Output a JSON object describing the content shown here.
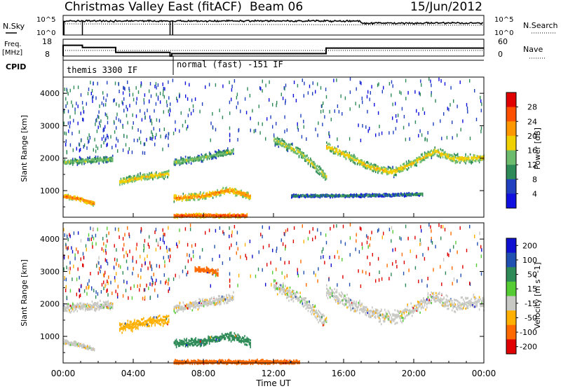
{
  "header": {
    "station": "Christmas Valley East (fitACF)",
    "beam": "Beam 06",
    "date": "15/Jun/2012"
  },
  "top_panels": {
    "nsky_label": "N.Sky",
    "nsearch_label": "N.Search",
    "nsky_ticks": [
      "10^5",
      "10^0"
    ],
    "nsearch_ticks": [
      "10^5",
      "10^0"
    ],
    "freq_label": "Freq.",
    "freq_unit": "[MHz]",
    "freq_ticks": [
      "18",
      "8"
    ],
    "nave_label": "Nave",
    "nave_ticks": [
      "60",
      "0"
    ],
    "cpid_label": "CPID",
    "cpid_segments": [
      {
        "label": "themis 3300 IF",
        "start_h": 0,
        "end_h": 6.1
      },
      {
        "label": "normal (fast) -151 IF",
        "start_h": 6.1,
        "end_h": 24
      }
    ],
    "freq_series_mhz": [
      [
        0,
        8
      ],
      [
        0,
        15
      ],
      [
        1.1,
        15
      ],
      [
        1.1,
        13.6
      ],
      [
        3,
        13.6
      ],
      [
        3,
        10.4
      ],
      [
        6.1,
        10.4
      ],
      [
        6.1,
        8
      ],
      [
        6.2,
        8
      ],
      [
        6.2,
        9.6
      ],
      [
        15,
        9.6
      ],
      [
        15,
        13.2
      ],
      [
        24,
        13.2
      ]
    ]
  },
  "chart_data": [
    {
      "type": "heatmap",
      "title": "",
      "xlabel": "",
      "ylabel": "Slant Range [km]",
      "xlim_h": [
        0,
        24
      ],
      "ylim": [
        180,
        4500
      ],
      "y_ticks": [
        "1000",
        "2000",
        "3000",
        "4000"
      ],
      "colorbar_label": "Power [dB]",
      "colorbar_ticks": [
        "4",
        "8",
        "12",
        "16",
        "20",
        "24",
        "28"
      ],
      "colorbar_colors": [
        "#1010e0",
        "#2040c0",
        "#2e8b57",
        "#6dbb6d",
        "#f0d000",
        "#ff9800",
        "#ff5000",
        "#e00000"
      ],
      "bands": [
        {
          "t": [
            0,
            1.1,
            2.8
          ],
          "r": [
            1900,
            1950,
            2000
          ],
          "w": 140,
          "v": 16
        },
        {
          "t": [
            0,
            0.8,
            1.8
          ],
          "r": [
            860,
            790,
            620
          ],
          "w": 80,
          "v": 26
        },
        {
          "t": [
            3.2,
            4.5,
            6.0
          ],
          "r": [
            1300,
            1450,
            1550
          ],
          "w": 160,
          "v": 20
        },
        {
          "t": [
            6.3,
            8.0,
            9.5,
            10.7
          ],
          "r": [
            800,
            870,
            1050,
            850
          ],
          "w": 140,
          "v": 24
        },
        {
          "t": [
            6.3,
            8.0,
            9.7
          ],
          "r": [
            1900,
            2050,
            2250
          ],
          "w": 150,
          "v": 16
        },
        {
          "t": [
            6.3,
            10.5
          ],
          "r": [
            260,
            260
          ],
          "w": 80,
          "v": 28
        },
        {
          "t": [
            12.0,
            13.5,
            15.0
          ],
          "r": [
            2600,
            2200,
            1450
          ],
          "w": 200,
          "v": 18
        },
        {
          "t": [
            15.0,
            16.2,
            17.5,
            18.8,
            20.0,
            21.2,
            22.3,
            24.0
          ],
          "r": [
            2400,
            2100,
            1750,
            1600,
            1900,
            2250,
            2000,
            2050
          ],
          "w": 180,
          "v": 20
        },
        {
          "t": [
            13.0,
            17.0,
            20.5
          ],
          "r": [
            870,
            880,
            920
          ],
          "w": 60,
          "v": 12
        }
      ],
      "scatter_ranges": [
        {
          "t": [
            0,
            6.1
          ],
          "r": [
            2200,
            4400
          ]
        },
        {
          "t": [
            6.2,
            24
          ],
          "r": [
            2600,
            4500
          ]
        }
      ]
    },
    {
      "type": "heatmap",
      "title": "",
      "xlabel": "Time UT",
      "ylabel": "Slant Range [km]",
      "xlim_h": [
        0,
        24
      ],
      "ylim": [
        180,
        4500
      ],
      "x_ticks": [
        "00:00",
        "04:00",
        "08:00",
        "12:00",
        "16:00",
        "20:00",
        "00:00"
      ],
      "y_ticks": [
        "1000",
        "2000",
        "3000",
        "4000"
      ],
      "colorbar_label": "Velocity [m s^-1]",
      "colorbar_ticks": [
        "200",
        "100",
        "50",
        "15",
        "-15",
        "-50",
        "-100",
        "-200"
      ],
      "colorbar_colors": [
        "#1010d0",
        "#2050b0",
        "#2e8b57",
        "#55cc33",
        "#c8c8c4",
        "#ffb000",
        "#ff6a00",
        "#e00000"
      ],
      "bands": [
        {
          "t": [
            0,
            1.1,
            2.8
          ],
          "r": [
            1900,
            1950,
            2000
          ],
          "w": 200,
          "v": 0
        },
        {
          "t": [
            0,
            0.8,
            1.8
          ],
          "r": [
            860,
            790,
            620
          ],
          "w": 100,
          "v": 0
        },
        {
          "t": [
            3.2,
            4.5,
            6.0
          ],
          "r": [
            1300,
            1450,
            1550
          ],
          "w": 220,
          "v": -20
        },
        {
          "t": [
            6.3,
            8.0,
            9.5,
            10.7
          ],
          "r": [
            800,
            870,
            1050,
            850
          ],
          "w": 180,
          "v": 40
        },
        {
          "t": [
            6.3,
            8.0,
            9.7
          ],
          "r": [
            1900,
            2050,
            2250
          ],
          "w": 200,
          "v": 0
        },
        {
          "t": [
            7.5,
            8.8
          ],
          "r": [
            3100,
            3000
          ],
          "w": 120,
          "v": -40
        },
        {
          "t": [
            6.3,
            13.5
          ],
          "r": [
            240,
            240
          ],
          "w": 90,
          "v": -60
        },
        {
          "t": [
            12.0,
            13.5,
            15.0
          ],
          "r": [
            2600,
            2200,
            1450
          ],
          "w": 280,
          "v": 0
        },
        {
          "t": [
            15.0,
            16.2,
            17.5,
            18.8,
            20.0,
            21.2,
            22.3,
            24.0
          ],
          "r": [
            2400,
            2100,
            1750,
            1600,
            1900,
            2250,
            2000,
            2050
          ],
          "w": 300,
          "v": 0
        }
      ],
      "scatter_ranges": [
        {
          "t": [
            0,
            6.1
          ],
          "r": [
            2200,
            4400
          ]
        },
        {
          "t": [
            6.2,
            24
          ],
          "r": [
            2600,
            4500
          ]
        }
      ]
    }
  ]
}
